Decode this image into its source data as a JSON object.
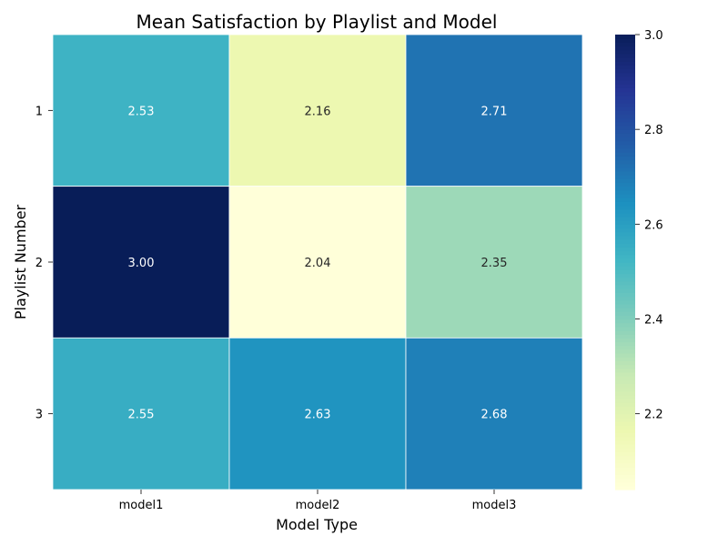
{
  "chart_data": {
    "type": "heatmap",
    "title": "Mean Satisfaction by Playlist and Model",
    "xlabel": "Model Type",
    "ylabel": "Playlist Number",
    "x_categories": [
      "model1",
      "model2",
      "model3"
    ],
    "y_categories": [
      "1",
      "2",
      "3"
    ],
    "values": [
      [
        2.53,
        2.16,
        2.71
      ],
      [
        3.0,
        2.04,
        2.35
      ],
      [
        2.55,
        2.63,
        2.68
      ]
    ],
    "cell_labels": [
      [
        "2.53",
        "2.16",
        "2.71"
      ],
      [
        "3.00",
        "2.04",
        "2.35"
      ],
      [
        "2.55",
        "2.63",
        "2.68"
      ]
    ],
    "colorbar": {
      "colormap": "YlGnBu",
      "vmin": 2.04,
      "vmax": 3.0,
      "ticks": [
        2.2,
        2.4,
        2.6,
        2.8,
        3.0
      ],
      "tick_labels": [
        "2.2",
        "2.4",
        "2.6",
        "2.8",
        "3.0"
      ]
    },
    "grid": false
  }
}
